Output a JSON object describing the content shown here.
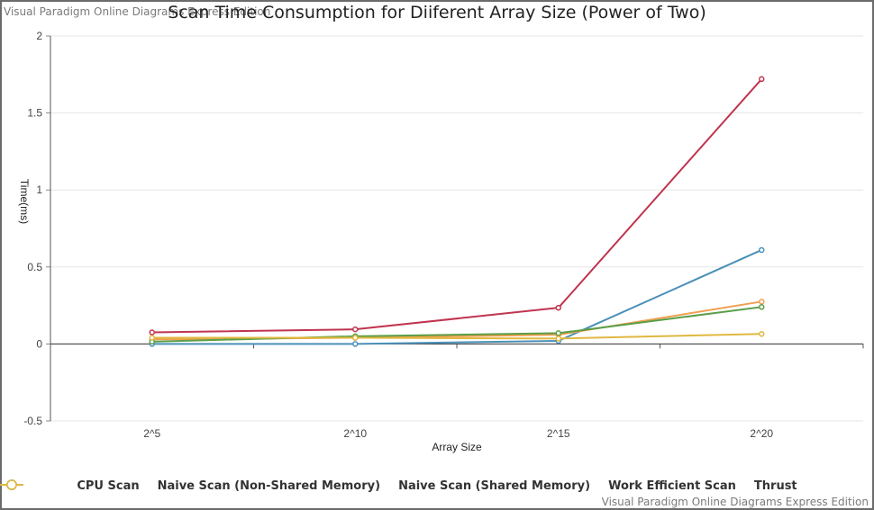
{
  "watermark_top": "Visual Paradigm Online Diagrams Express Edition",
  "watermark_bottom": "Visual Paradigm Online Diagrams Express Edition",
  "chart_data": {
    "type": "line",
    "title": "Scan Time Consumption for Diiferent Array Size (Power of Two)",
    "xlabel": "Array Size",
    "ylabel": "Time(ms)",
    "categories": [
      "2^5",
      "2^10",
      "2^15",
      "2^20"
    ],
    "ylim": [
      -0.5,
      2
    ],
    "yticks": [
      "-0.5",
      "0",
      "0.5",
      "1",
      "1.5",
      "2"
    ],
    "ytick_values": [
      -0.5,
      0,
      0.5,
      1,
      1.5,
      2
    ],
    "grid": true,
    "legend_position": "bottom",
    "series": [
      {
        "name": "CPU Scan",
        "color": "#4a90b8",
        "values": [
          0.0,
          0.0,
          0.02,
          0.61
        ]
      },
      {
        "name": "Naive Scan (Non-Shared Memory)",
        "color": "#c0344f",
        "values": [
          0.075,
          0.095,
          0.235,
          1.72
        ]
      },
      {
        "name": "Naive Scan (Shared Memory)",
        "color": "#f0a050",
        "values": [
          0.03,
          0.04,
          0.06,
          0.275
        ]
      },
      {
        "name": "Work Efficient Scan",
        "color": "#5a9e48",
        "values": [
          0.015,
          0.05,
          0.07,
          0.24
        ]
      },
      {
        "name": "Thrust",
        "color": "#e0b840",
        "values": [
          0.04,
          0.04,
          0.035,
          0.065
        ]
      }
    ]
  }
}
